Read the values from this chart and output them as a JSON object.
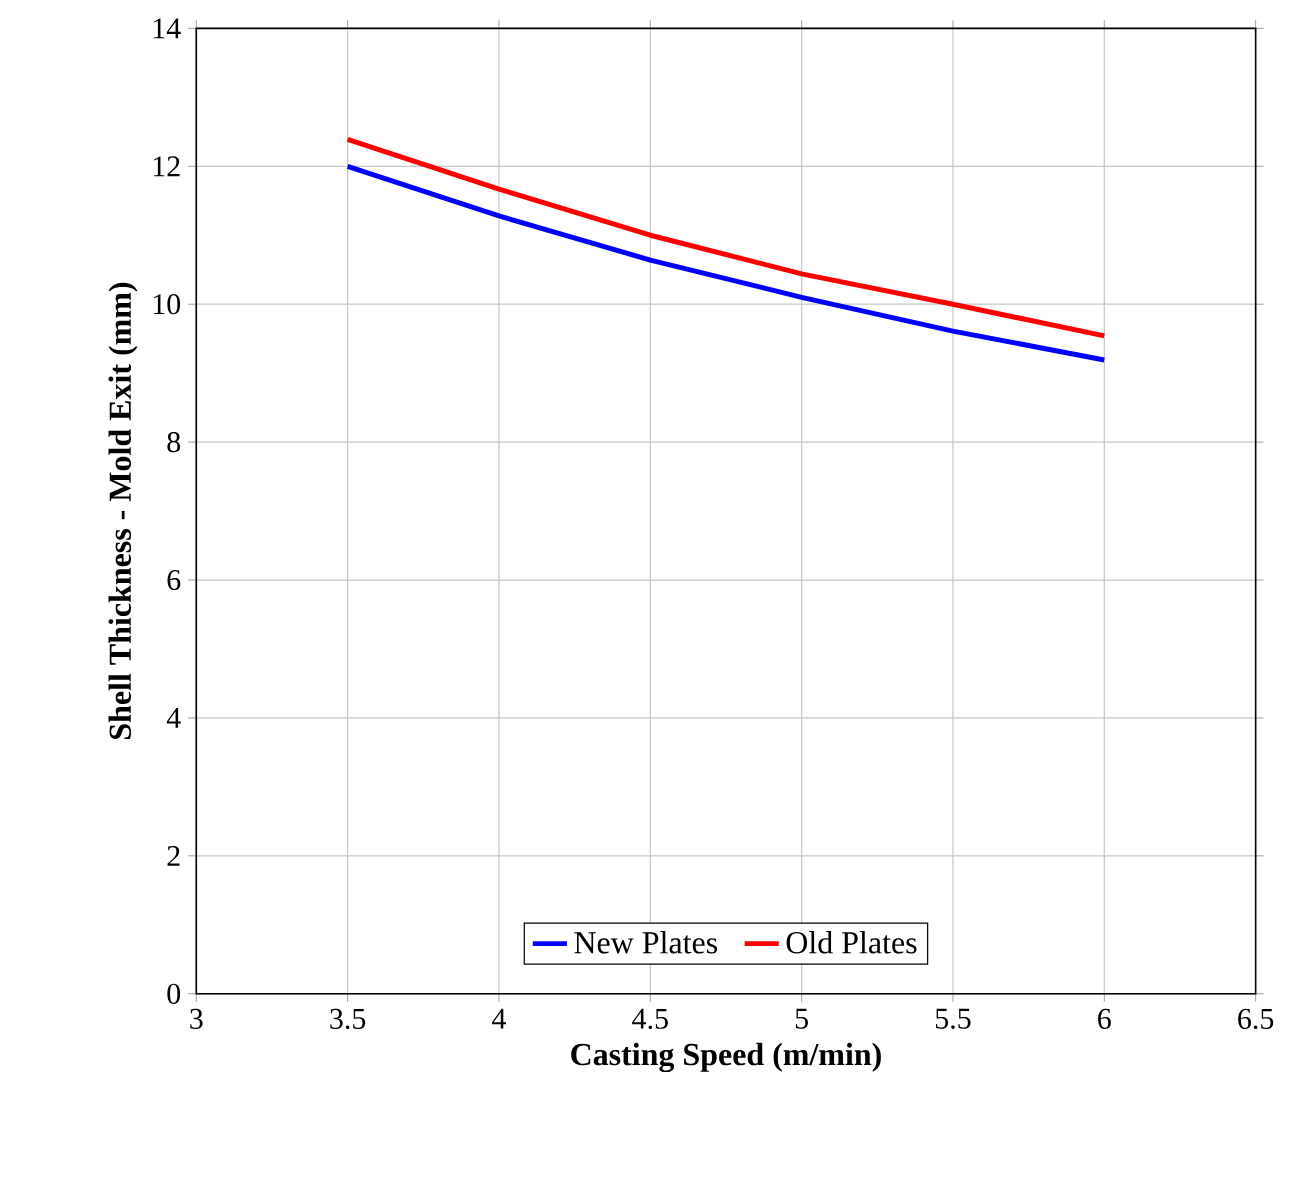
{
  "chart_data": {
    "type": "line",
    "xlabel": "Casting Speed (m/min)",
    "ylabel": "Shell Thickness - Mold Exit (mm)",
    "x": [
      3.5,
      4,
      4.5,
      5,
      5.5,
      6
    ],
    "series": [
      {
        "name": "New Plates",
        "color": "#0000ff",
        "values": [
          12.0,
          11.28,
          10.64,
          10.1,
          9.61,
          9.19
        ]
      },
      {
        "name": "Old Plates",
        "color": "#ff0000",
        "values": [
          12.39,
          11.67,
          11.0,
          10.44,
          10.0,
          9.54
        ]
      }
    ],
    "xlim": [
      3,
      6.5
    ],
    "xticks": [
      3,
      3.5,
      4,
      4.5,
      5,
      5.5,
      6,
      6.5
    ],
    "ylim": [
      0,
      14
    ],
    "yticks": [
      0,
      2,
      4,
      6,
      8,
      10,
      12,
      14
    ],
    "grid": true,
    "legend": "bottom",
    "marker": "none",
    "line_style": "solid"
  }
}
